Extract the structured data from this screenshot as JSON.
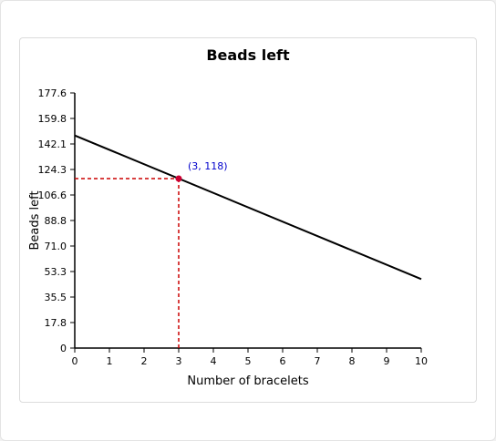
{
  "chart_data": {
    "type": "line",
    "title": "Beads left",
    "xlabel": "Number of bracelets",
    "ylabel": "Beads left",
    "xlim": [
      0,
      10
    ],
    "ylim": [
      0,
      177.6
    ],
    "x_ticks": [
      "0",
      "1",
      "2",
      "3",
      "4",
      "5",
      "6",
      "7",
      "8",
      "9",
      "10"
    ],
    "y_ticks": [
      "0",
      "17.8",
      "35.5",
      "53.3",
      "71.0",
      "88.8",
      "106.6",
      "124.3",
      "142.1",
      "159.8",
      "177.6"
    ],
    "series": [
      {
        "x": [
          0,
          10
        ],
        "y": [
          148,
          48
        ]
      }
    ],
    "highlight": {
      "x": 3,
      "y": 118,
      "label": "(3, 118)"
    },
    "grid": false,
    "colors": {
      "line": "#000000",
      "highlight": "#cc0000",
      "point": "#cc0033",
      "label": "#0000cc"
    }
  }
}
